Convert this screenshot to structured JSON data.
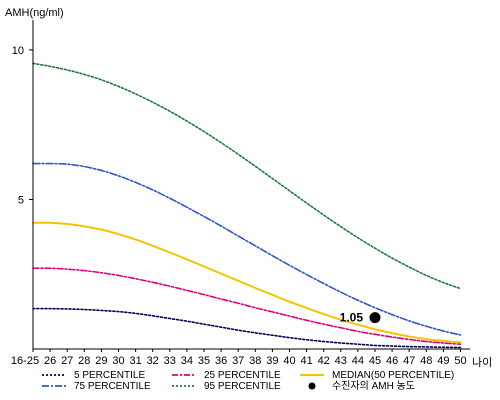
{
  "chart_data": {
    "type": "line",
    "ylabel": "AMH(ng/ml)",
    "xlabel": "나이",
    "ylim": [
      0,
      11
    ],
    "yticks": [
      5,
      10
    ],
    "categories": [
      "16-25",
      "26",
      "27",
      "28",
      "29",
      "30",
      "31",
      "32",
      "33",
      "34",
      "35",
      "36",
      "37",
      "38",
      "39",
      "40",
      "41",
      "42",
      "43",
      "44",
      "45",
      "46",
      "47",
      "48",
      "49",
      "50"
    ],
    "series": [
      {
        "name": "5 PERCENTILE",
        "color": "#00005a",
        "dash": "2,2",
        "values": [
          1.35,
          1.35,
          1.34,
          1.32,
          1.29,
          1.25,
          1.19,
          1.11,
          1.02,
          0.93,
          0.83,
          0.73,
          0.63,
          0.54,
          0.46,
          0.38,
          0.31,
          0.25,
          0.2,
          0.16,
          0.12,
          0.1,
          0.08,
          0.07,
          0.06,
          0.05
        ]
      },
      {
        "name": "25 PERCENTILE",
        "color": "#e0007a",
        "dash": "6,2,2,2",
        "values": [
          2.7,
          2.7,
          2.67,
          2.62,
          2.55,
          2.46,
          2.35,
          2.23,
          2.1,
          1.96,
          1.82,
          1.67,
          1.53,
          1.38,
          1.24,
          1.1,
          0.96,
          0.83,
          0.71,
          0.59,
          0.49,
          0.4,
          0.32,
          0.25,
          0.2,
          0.16
        ]
      },
      {
        "name": "MEDIAN(50 PERCENTILE)",
        "color": "#f5c400",
        "dash": "",
        "values": [
          4.22,
          4.22,
          4.18,
          4.1,
          3.99,
          3.84,
          3.66,
          3.45,
          3.23,
          3.0,
          2.76,
          2.52,
          2.28,
          2.04,
          1.81,
          1.58,
          1.37,
          1.17,
          0.98,
          0.81,
          0.66,
          0.53,
          0.42,
          0.33,
          0.27,
          0.22
        ]
      },
      {
        "name": "75 PERCENTILE",
        "color": "#3355cc",
        "dash": "7,2,2,2",
        "values": [
          6.2,
          6.2,
          6.18,
          6.1,
          5.97,
          5.79,
          5.57,
          5.32,
          5.04,
          4.74,
          4.43,
          4.11,
          3.78,
          3.45,
          3.12,
          2.8,
          2.49,
          2.19,
          1.9,
          1.63,
          1.38,
          1.15,
          0.94,
          0.76,
          0.6,
          0.47
        ]
      },
      {
        "name": "95 PERCENTILE",
        "color": "#1b7a3c",
        "dash": "2,2",
        "values": [
          9.55,
          9.45,
          9.33,
          9.18,
          9.0,
          8.78,
          8.53,
          8.25,
          7.95,
          7.62,
          7.27,
          6.9,
          6.51,
          6.11,
          5.7,
          5.29,
          4.88,
          4.48,
          4.09,
          3.72,
          3.37,
          3.04,
          2.74,
          2.46,
          2.22,
          2.02
        ]
      }
    ],
    "marker": {
      "name": "수진자의 AMH 농도",
      "x": "45",
      "value": 1.05,
      "label": "1.05"
    },
    "legend": {
      "placement": "bottom",
      "order": [
        "5 PERCENTILE",
        "25 PERCENTILE",
        "MEDIAN(50 PERCENTILE)",
        "75 PERCENTILE",
        "95 PERCENTILE",
        "수진자의 AMH 농도"
      ]
    },
    "grid": false
  }
}
